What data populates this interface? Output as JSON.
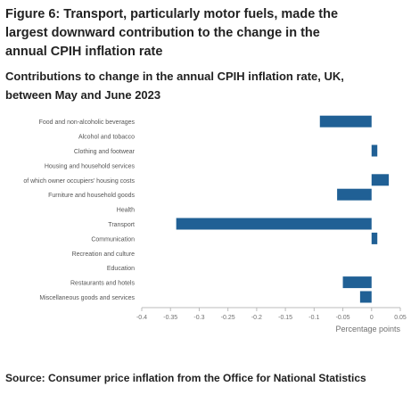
{
  "figure": {
    "title": "Figure 6: Transport, particularly motor fuels, made the largest downward contribution to the change in the annual CPIH inflation rate",
    "subtitle": "Contributions to change in the annual CPIH inflation rate, UK, between May and June 2023",
    "source": "Source: Consumer price inflation from the Office for National Statistics",
    "bar_color": "#206095"
  },
  "chart_data": {
    "type": "bar",
    "orientation": "horizontal",
    "categories": [
      "Food and non-alcoholic beverages",
      "Alcohol and tobacco",
      "Clothing and footwear",
      "Housing and household services",
      "of which owner occupiers' housing costs",
      "Furniture and household goods",
      "Health",
      "Transport",
      "Communication",
      "Recreation and culture",
      "Education",
      "Restaurants and hotels",
      "Miscellaneous goods and services"
    ],
    "values": [
      -0.09,
      0.0,
      0.01,
      0.0,
      0.03,
      -0.06,
      0.0,
      -0.34,
      0.01,
      0.0,
      0.0,
      -0.05,
      -0.02
    ],
    "xlabel": "Percentage points",
    "xlim": [
      -0.4,
      0.05
    ],
    "xticks": [
      -0.4,
      -0.35,
      -0.3,
      -0.25,
      -0.2,
      -0.15,
      -0.1,
      -0.05,
      0,
      0.05
    ],
    "xtick_labels": [
      "-0.4",
      "-0.35",
      "-0.3",
      "-0.25",
      "-0.2",
      "-0.15",
      "-0.1",
      "-0.05",
      "0",
      "0.05"
    ],
    "grid": false
  }
}
